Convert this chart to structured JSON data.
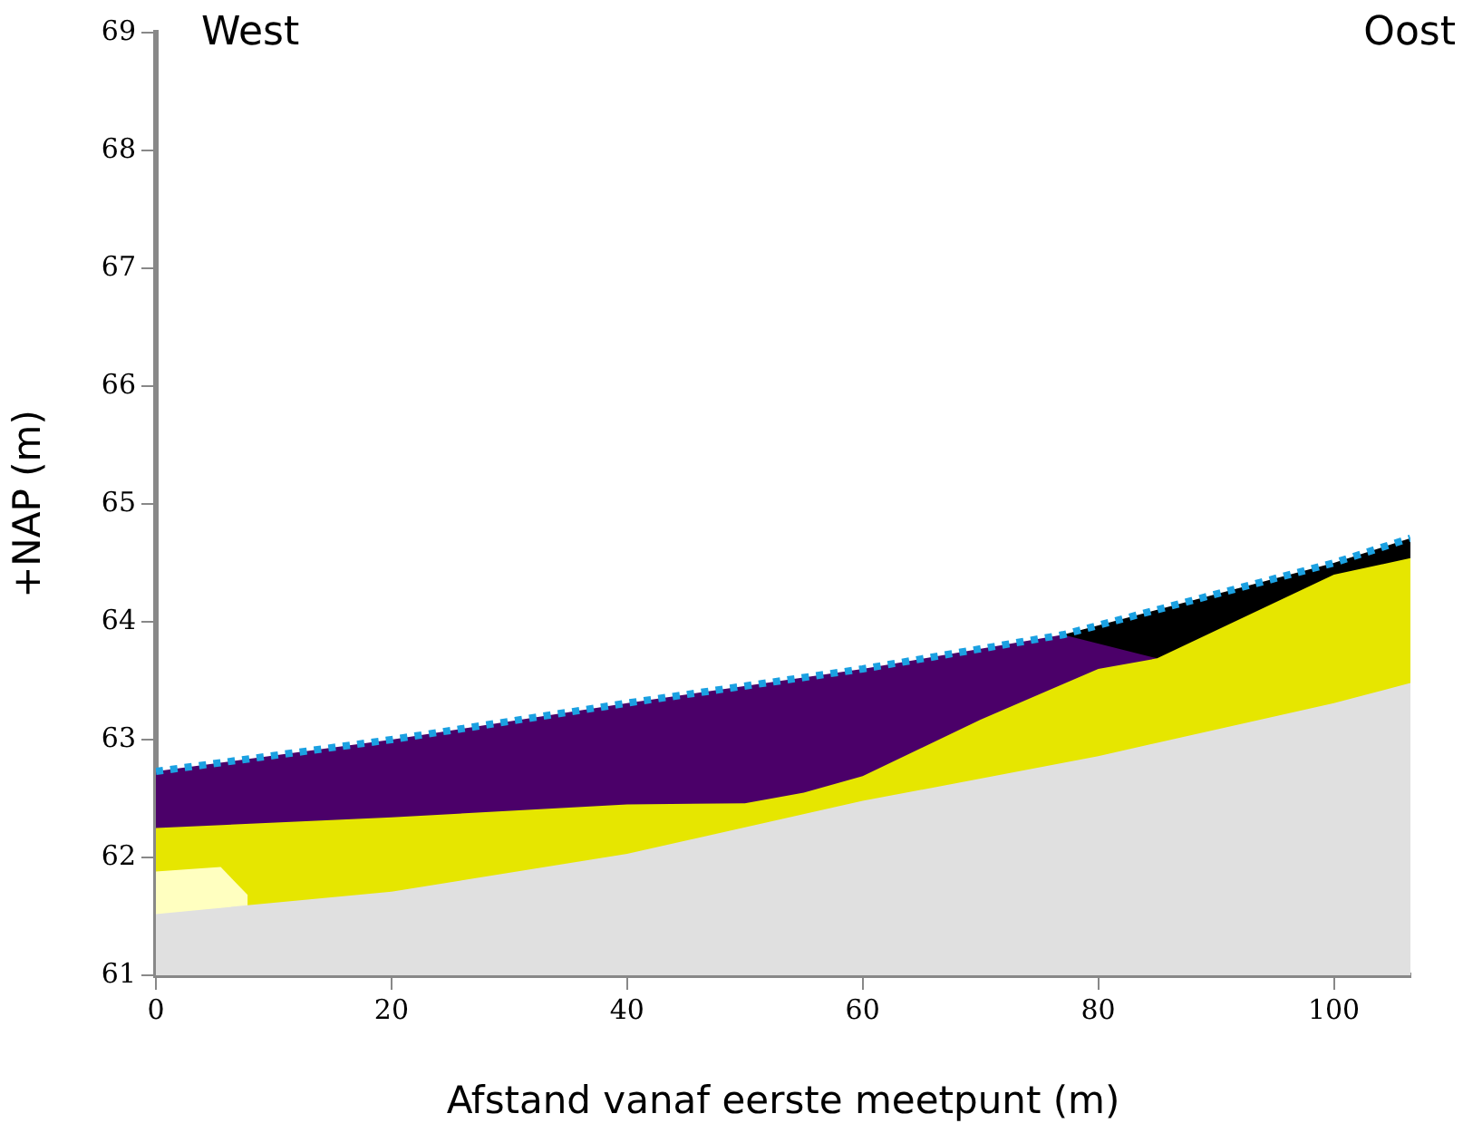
{
  "chart_data": {
    "type": "area",
    "xlabel": "Afstand vanaf eerste meetpunt (m)",
    "ylabel": "+NAP (m)",
    "annotations": [
      "West",
      "Oost"
    ],
    "xlim": [
      0,
      106.5
    ],
    "xticks": [
      0,
      20,
      40,
      60,
      80,
      100
    ],
    "ylim": [
      61,
      69
    ],
    "yticks": [
      61,
      62,
      63,
      64,
      65,
      66,
      67,
      68,
      69
    ],
    "grid": false,
    "legend": false,
    "series": [
      {
        "color": "#000000",
        "x": [
          77,
          80,
          100,
          106.5
        ],
        "values": [
          63.89,
          63.97,
          64.5,
          64.71
        ]
      },
      {
        "color": "#4b0069",
        "x": [
          0,
          20,
          40,
          60,
          77,
          85
        ],
        "values": [
          62.73,
          63.0,
          63.31,
          63.6,
          63.89,
          63.69
        ]
      },
      {
        "color": "#e6e600",
        "x": [
          0,
          20,
          40,
          50,
          55,
          60,
          70,
          80,
          85,
          100,
          106.5
        ],
        "values": [
          62.25,
          62.34,
          62.45,
          62.46,
          62.55,
          62.69,
          63.17,
          63.6,
          63.69,
          64.4,
          64.54
        ]
      },
      {
        "color": "#ffffc0",
        "x": [
          0,
          5.5,
          7.8
        ],
        "values": [
          61.88,
          61.92,
          61.68
        ]
      },
      {
        "color": "#e0e0e0",
        "x": [
          0,
          20,
          40,
          60,
          80,
          100,
          106.5
        ],
        "values": [
          61.52,
          61.71,
          62.03,
          62.48,
          62.86,
          63.31,
          63.48
        ]
      },
      {
        "type": "line",
        "color": "#1ba1e2",
        "line_style": "dotted",
        "x": [
          0,
          20,
          40,
          60,
          77,
          80,
          100,
          106.5
        ],
        "values": [
          62.73,
          63.0,
          63.31,
          63.6,
          63.89,
          63.97,
          64.5,
          64.71
        ]
      }
    ]
  }
}
